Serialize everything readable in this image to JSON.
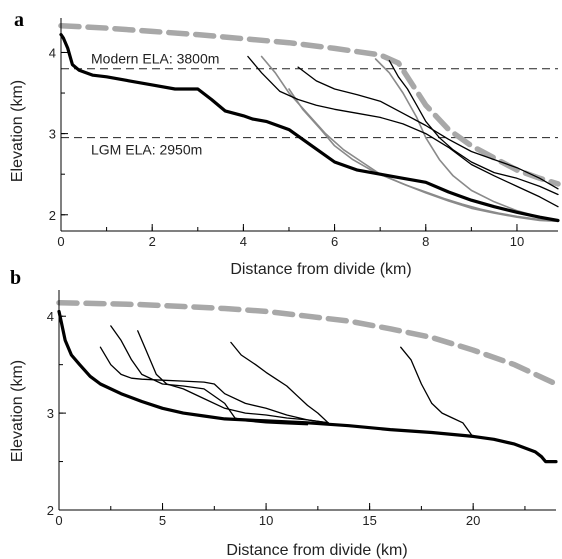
{
  "chart_data": [
    {
      "type": "line",
      "panel_label": "a",
      "xlabel": "Distance from divide (km)",
      "ylabel": "Elevation (km)",
      "xlim": [
        0,
        10.9
      ],
      "ylim": [
        1.8,
        4.4
      ],
      "xticks": [
        0,
        2,
        4,
        6,
        8,
        10
      ],
      "yticks": [
        2,
        3,
        4
      ],
      "reference_lines": [
        {
          "label": "Modern ELA: 3800m",
          "y": 3.8,
          "style": "dashed"
        },
        {
          "label": "LGM ELA: 2950m",
          "y": 2.95,
          "style": "dashed"
        }
      ],
      "series": [
        {
          "style": "thick-black",
          "x": [
            0,
            0.05,
            0.15,
            0.25,
            0.4,
            0.7,
            1.0,
            1.5,
            2.0,
            2.5,
            3.0,
            3.3,
            3.6,
            4.0,
            4.2,
            4.5,
            5.0,
            5.5,
            6.0,
            6.5,
            7.0,
            7.5,
            8.0,
            8.5,
            9.0,
            9.5,
            10.0,
            10.5,
            10.9
          ],
          "y": [
            4.22,
            4.18,
            4.05,
            3.85,
            3.78,
            3.72,
            3.7,
            3.65,
            3.6,
            3.55,
            3.55,
            3.42,
            3.28,
            3.22,
            3.18,
            3.15,
            3.05,
            2.85,
            2.65,
            2.55,
            2.5,
            2.45,
            2.4,
            2.28,
            2.18,
            2.1,
            2.03,
            1.97,
            1.93
          ]
        },
        {
          "style": "dashed-gray",
          "x": [
            0,
            1,
            2,
            3,
            4,
            5,
            6,
            7,
            7.4,
            8,
            8.5,
            9,
            9.5,
            10,
            10.5,
            10.9
          ],
          "y": [
            4.33,
            4.3,
            4.26,
            4.22,
            4.17,
            4.12,
            4.05,
            3.97,
            3.87,
            3.35,
            3.05,
            2.85,
            2.7,
            2.55,
            2.45,
            2.38
          ]
        },
        {
          "style": "thin-gray",
          "x": [
            4.4,
            4.7,
            5.0,
            5.4,
            5.8,
            6.2,
            6.6,
            7.0,
            7.5,
            8.0,
            8.5,
            9.0,
            9.5,
            10.0,
            10.5,
            10.9
          ],
          "y": [
            3.95,
            3.75,
            3.5,
            3.25,
            3.0,
            2.8,
            2.65,
            2.5,
            2.38,
            2.27,
            2.17,
            2.08,
            2.02,
            1.97,
            1.93,
            1.92
          ]
        },
        {
          "style": "thin-gray",
          "x": [
            5.0,
            5.3,
            5.7,
            6.0,
            6.4,
            6.8,
            7.2,
            7.6,
            8.0,
            8.4,
            8.8,
            9.2,
            9.6,
            10.0,
            10.5,
            10.9
          ],
          "y": [
            3.55,
            3.3,
            3.05,
            2.85,
            2.68,
            2.55,
            2.45,
            2.36,
            2.28,
            2.2,
            2.13,
            2.07,
            2.02,
            1.98,
            1.94,
            1.92
          ]
        },
        {
          "style": "thin-gray",
          "x": [
            6.9,
            7.2,
            7.5,
            7.8,
            8.0,
            8.3,
            8.6,
            9.0,
            9.5,
            10.0,
            10.5,
            10.9
          ],
          "y": [
            3.92,
            3.75,
            3.5,
            3.2,
            2.95,
            2.68,
            2.48,
            2.3,
            2.16,
            2.05,
            1.97,
            1.93
          ]
        },
        {
          "style": "thin-black",
          "x": [
            4.1,
            4.4,
            4.8,
            5.2,
            5.6,
            6.0,
            6.5,
            7.0,
            7.5,
            8.0,
            8.5,
            9.0,
            9.5,
            10.0,
            10.5,
            10.9
          ],
          "y": [
            3.95,
            3.75,
            3.52,
            3.42,
            3.35,
            3.3,
            3.25,
            3.2,
            3.12,
            3.0,
            2.83,
            2.62,
            2.48,
            2.35,
            2.22,
            2.1
          ]
        },
        {
          "style": "thin-black",
          "x": [
            5.2,
            5.6,
            6.0,
            6.5,
            7.0,
            7.5,
            8.0,
            8.5,
            9.0,
            9.5,
            10.0,
            10.5,
            10.9
          ],
          "y": [
            3.82,
            3.65,
            3.55,
            3.48,
            3.4,
            3.25,
            3.1,
            2.93,
            2.78,
            2.68,
            2.58,
            2.45,
            2.32
          ]
        },
        {
          "style": "thin-black",
          "x": [
            7.2,
            7.4,
            7.6,
            7.8,
            8.0,
            8.3,
            8.6,
            9.0,
            9.5,
            10.0,
            10.5,
            10.9
          ],
          "y": [
            3.9,
            3.7,
            3.55,
            3.35,
            3.15,
            2.95,
            2.8,
            2.65,
            2.52,
            2.45,
            2.35,
            2.25
          ]
        }
      ]
    },
    {
      "type": "line",
      "panel_label": "b",
      "xlabel": "Distance from divide (km)",
      "ylabel": "Elevation (km)",
      "xlim": [
        0,
        24
      ],
      "ylim": [
        2.0,
        4.25
      ],
      "xticks": [
        0,
        5,
        10,
        15,
        20
      ],
      "yticks": [
        2,
        3,
        4
      ],
      "series": [
        {
          "style": "thick-black",
          "x": [
            0,
            0.1,
            0.3,
            0.6,
            1.0,
            1.5,
            2.0,
            3.0,
            4.0,
            5.0,
            6.0,
            7.0,
            8.0,
            10.0,
            12.0,
            14.0,
            16.0,
            18.0,
            20.0,
            21.0,
            22.0,
            23.0,
            23.3,
            23.5,
            24.0
          ],
          "y": [
            4.05,
            3.95,
            3.75,
            3.6,
            3.5,
            3.38,
            3.3,
            3.2,
            3.12,
            3.05,
            3.0,
            2.97,
            2.94,
            2.92,
            2.9,
            2.87,
            2.83,
            2.8,
            2.76,
            2.73,
            2.68,
            2.6,
            2.55,
            2.5,
            2.5
          ]
        },
        {
          "style": "dashed-gray",
          "x": [
            0,
            2,
            4,
            6,
            8,
            10,
            12,
            14,
            16,
            18,
            20,
            22,
            24
          ],
          "y": [
            4.14,
            4.13,
            4.12,
            4.1,
            4.08,
            4.05,
            4.0,
            3.95,
            3.87,
            3.78,
            3.65,
            3.5,
            3.3
          ]
        },
        {
          "style": "thin-black",
          "x": [
            2.0,
            2.5,
            3.0,
            3.5,
            4.0,
            5.0,
            6.0,
            7.0,
            7.5,
            8.0,
            9.0,
            10.0,
            11.0,
            12.0,
            13.0
          ],
          "y": [
            3.68,
            3.5,
            3.4,
            3.36,
            3.35,
            3.34,
            3.33,
            3.32,
            3.3,
            3.2,
            3.1,
            3.05,
            2.98,
            2.93,
            2.9
          ]
        },
        {
          "style": "thin-black",
          "x": [
            2.5,
            3.0,
            3.5,
            4.0,
            5.0,
            6.0,
            7.0,
            8.0,
            8.5,
            9.0,
            10.0,
            11.0,
            12.0
          ],
          "y": [
            3.9,
            3.75,
            3.55,
            3.4,
            3.3,
            3.28,
            3.25,
            3.1,
            2.95,
            2.92,
            2.9,
            2.89,
            2.88
          ]
        },
        {
          "style": "thin-black",
          "x": [
            3.8,
            4.2,
            4.7,
            5.2,
            6.0,
            7.0,
            8.0,
            9.0,
            10.0,
            11.0,
            12.0,
            13.0
          ],
          "y": [
            3.85,
            3.65,
            3.4,
            3.3,
            3.25,
            3.15,
            3.05,
            3.0,
            2.98,
            2.95,
            2.93,
            2.9
          ]
        },
        {
          "style": "thin-black",
          "x": [
            8.3,
            8.8,
            9.5,
            10.0,
            10.5,
            11.0,
            11.5,
            12.0,
            12.5,
            13.0
          ],
          "y": [
            3.73,
            3.6,
            3.5,
            3.42,
            3.35,
            3.28,
            3.18,
            3.08,
            3.0,
            2.9
          ]
        },
        {
          "style": "thin-black",
          "x": [
            16.5,
            17.0,
            17.5,
            18.0,
            18.5,
            19.0,
            19.5,
            20.0
          ],
          "y": [
            3.68,
            3.55,
            3.3,
            3.1,
            3.0,
            2.95,
            2.9,
            2.75
          ]
        }
      ]
    }
  ]
}
